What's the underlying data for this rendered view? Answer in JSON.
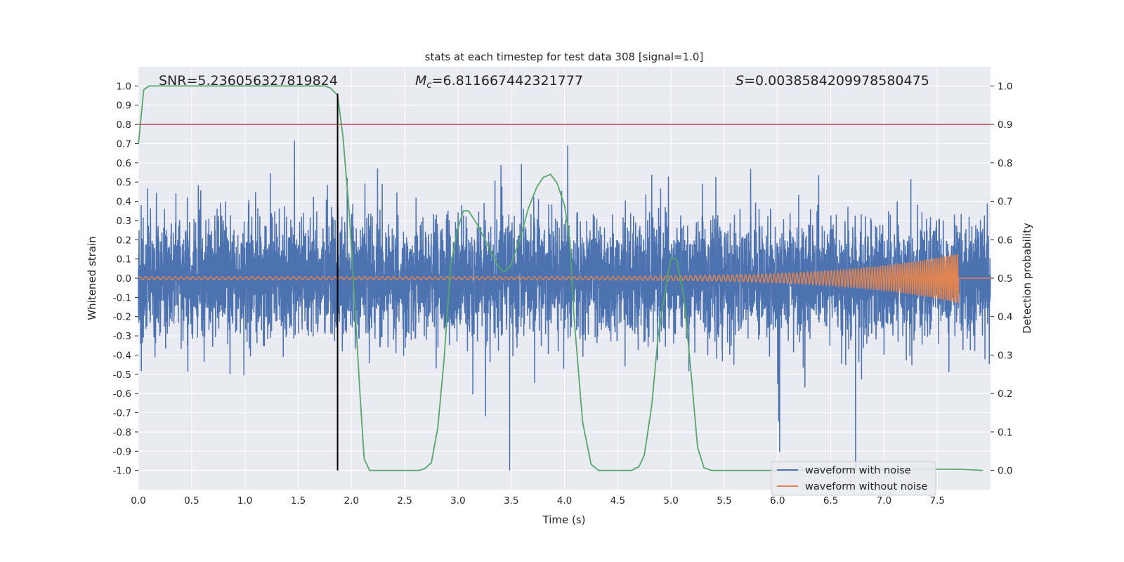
{
  "chart_data": {
    "type": "line",
    "title": "stats at each timestep for test data 308 [signal=1.0]",
    "xlabel": "Time (s)",
    "ylabel": "Whitened strain",
    "ylabel_right": "Detection probability",
    "xlim": [
      0.0,
      8.0
    ],
    "ylim": [
      -1.1,
      1.1
    ],
    "ylim_right": [
      -0.05,
      1.05
    ],
    "grid": true,
    "xticks": [
      "0.0",
      "0.5",
      "1.0",
      "1.5",
      "2.0",
      "2.5",
      "3.0",
      "3.5",
      "4.0",
      "4.5",
      "5.0",
      "5.5",
      "6.0",
      "6.5",
      "7.0",
      "7.5"
    ],
    "yticks": [
      "-1.0",
      "-0.9",
      "-0.8",
      "-0.7",
      "-0.6",
      "-0.5",
      "-0.4",
      "-0.3",
      "-0.2",
      "-0.1",
      "0.0",
      "0.1",
      "0.2",
      "0.3",
      "0.4",
      "0.5",
      "0.6",
      "0.7",
      "0.8",
      "0.9",
      "1.0"
    ],
    "yticks_right": [
      "0.0",
      "0.1",
      "0.2",
      "0.3",
      "0.4",
      "0.5",
      "0.6",
      "0.7",
      "0.8",
      "0.9",
      "1.0"
    ],
    "annotations": {
      "snr": "SNR=5.236056327819824",
      "mc_symbol": "M",
      "mc_sub": "c",
      "mc_value": "=6.811667442321777",
      "s_symbol": "S",
      "s_value": "=0.0038584209978580475"
    },
    "legend": {
      "placement": "lower-right",
      "entries": [
        "waveform with noise",
        "waveform without noise"
      ]
    },
    "series": [
      {
        "name": "waveform with noise",
        "color": "#4c72b0",
        "kind": "noise",
        "duration": 8.0,
        "std": 0.15,
        "clip": 1.0,
        "samples": 6000
      },
      {
        "name": "waveform without noise",
        "color": "#dd8452",
        "kind": "chirp",
        "t_merge": 7.7,
        "amp_start": 0.008,
        "amp_end": 0.13,
        "f_start": 18,
        "f_end": 60
      },
      {
        "name": "detection probability",
        "color": "#55a868",
        "axis": "right",
        "x": [
          0.0,
          0.05,
          0.1,
          0.5,
          1.0,
          1.5,
          1.75,
          1.8,
          1.87,
          1.92,
          1.98,
          2.03,
          2.08,
          2.12,
          2.17,
          2.3,
          2.64,
          2.69,
          2.75,
          2.81,
          2.87,
          2.93,
          2.99,
          3.05,
          3.1,
          3.18,
          3.3,
          3.38,
          3.43,
          3.49,
          3.58,
          3.66,
          3.74,
          3.8,
          3.87,
          3.93,
          4.0,
          4.05,
          4.09,
          4.17,
          4.25,
          4.32,
          4.63,
          4.7,
          4.75,
          4.82,
          4.88,
          4.94,
          5.0,
          5.05,
          5.12,
          5.19,
          5.25,
          5.31,
          5.38,
          6.0,
          7.0,
          7.47,
          7.7,
          7.93
        ],
        "y": [
          0.848,
          0.99,
          1.0,
          1.0,
          1.0,
          1.0,
          1.0,
          0.995,
          0.976,
          0.87,
          0.67,
          0.44,
          0.2,
          0.03,
          0.0,
          0.0,
          0.0,
          0.005,
          0.02,
          0.11,
          0.29,
          0.53,
          0.62,
          0.675,
          0.675,
          0.64,
          0.575,
          0.53,
          0.517,
          0.53,
          0.6,
          0.68,
          0.737,
          0.762,
          0.77,
          0.748,
          0.69,
          0.6,
          0.4,
          0.126,
          0.016,
          0.0,
          0.0,
          0.01,
          0.04,
          0.17,
          0.35,
          0.455,
          0.552,
          0.55,
          0.455,
          0.25,
          0.06,
          0.007,
          0.0,
          0.0,
          0.002,
          0.003,
          0.003,
          0.0
        ]
      },
      {
        "name": "threshold",
        "color": "#c44e52",
        "axis": "right",
        "kind": "hline",
        "value": 0.9
      },
      {
        "name": "detection time",
        "color": "#000000",
        "axis": "right",
        "kind": "vline",
        "x": 1.87,
        "y_range": [
          0.0,
          0.98
        ]
      }
    ]
  }
}
